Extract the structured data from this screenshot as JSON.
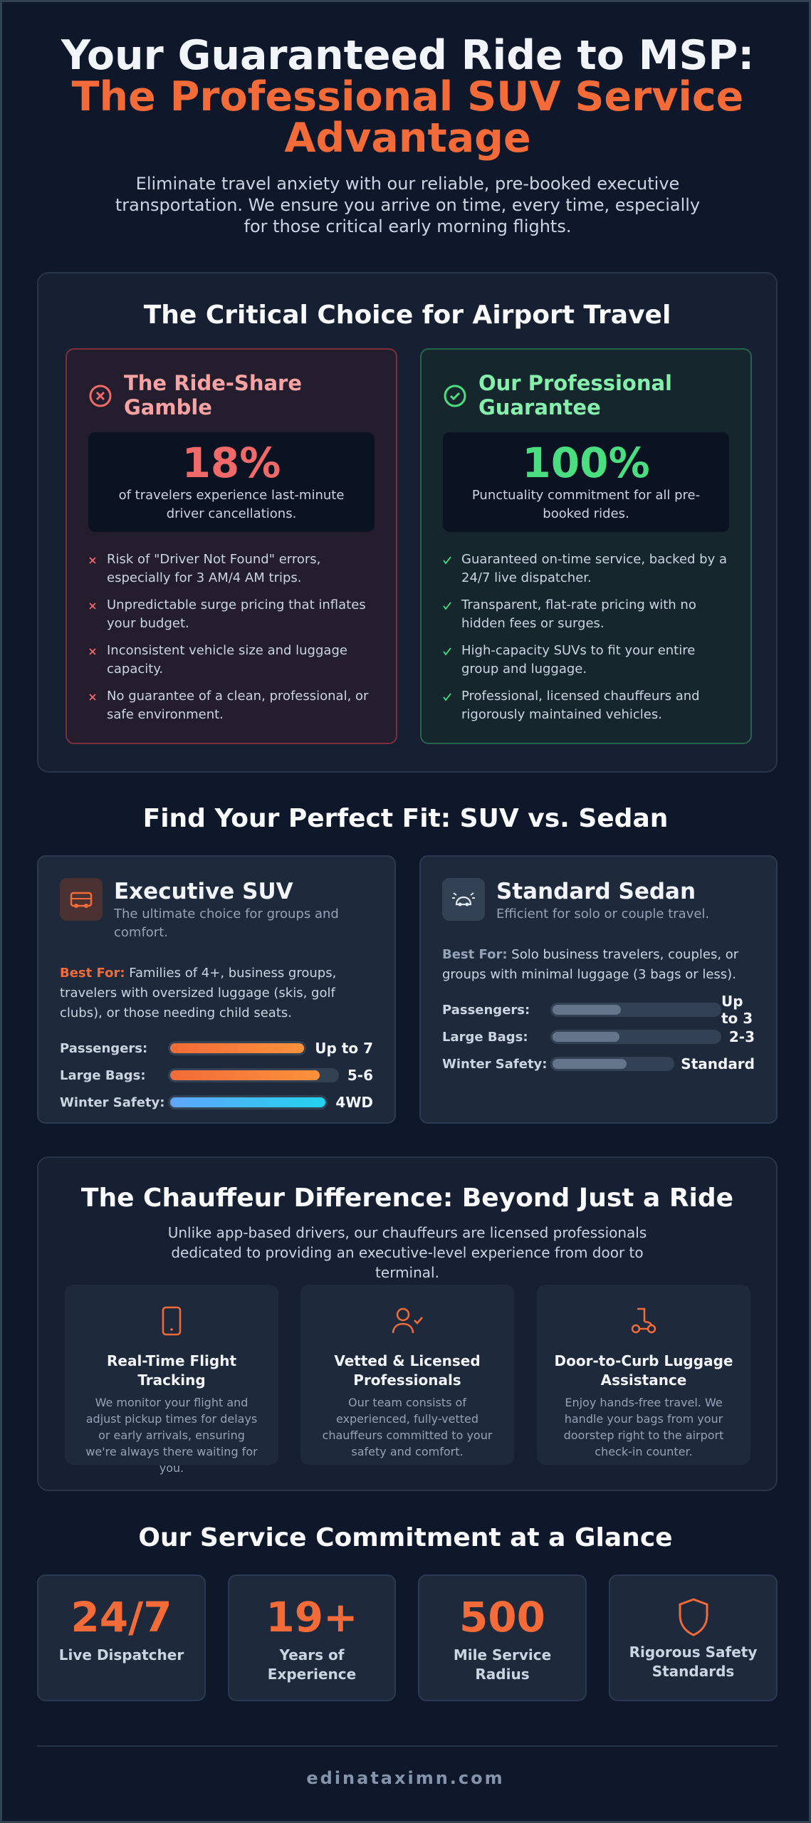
{
  "header": {
    "title_line1": "Your Guaranteed Ride to MSP:",
    "title_line2": "The Professional SUV Service Advantage",
    "subtitle": "Eliminate travel anxiety with our reliable, pre-booked executive transportation. We ensure you arrive on time, every time, especially for those critical early morning flights."
  },
  "comparison": {
    "title": "The Critical Choice for Airport Travel",
    "rideshare": {
      "title": "The Ride-Share Gamble",
      "stat": "18%",
      "stat_caption": "of travelers experience last-minute driver cancellations.",
      "points": [
        "Risk of \"Driver Not Found\" errors, especially for 3 AM/4 AM trips.",
        "Unpredictable surge pricing that inflates your budget.",
        "Inconsistent vehicle size and luggage capacity.",
        "No guarantee of a clean, professional, or safe environment."
      ]
    },
    "professional": {
      "title": "Our Professional Guarantee",
      "stat": "100%",
      "stat_caption": "Punctuality commitment for all pre-booked rides.",
      "points": [
        "Guaranteed on-time service, backed by a 24/7 live dispatcher.",
        "Transparent, flat-rate pricing with no hidden fees or surges.",
        "High-capacity SUVs to fit your entire group and luggage.",
        "Professional, licensed chauffeurs and rigorously maintained vehicles."
      ]
    }
  },
  "fit": {
    "title": "Find Your Perfect Fit: SUV vs. Sedan",
    "vehicles": [
      {
        "name": "Executive SUV",
        "tagline": "The ultimate choice for groups and comfort.",
        "best_for_label": "Best For:",
        "best_for": "Families of 4+, business groups, travelers with oversized luggage (skis, golf clubs), or those needing child seats.",
        "specs": [
          {
            "label": "Passengers:",
            "value": "Up to 7"
          },
          {
            "label": "Large Bags:",
            "value": "5-6"
          },
          {
            "label": "Winter Safety:",
            "value": "4WD"
          }
        ]
      },
      {
        "name": "Standard Sedan",
        "tagline": "Efficient for solo or couple travel.",
        "best_for_label": "Best For:",
        "best_for": "Solo business travelers, couples, or groups with minimal luggage (3 bags or less).",
        "specs": [
          {
            "label": "Passengers:",
            "value": "Up to 3"
          },
          {
            "label": "Large Bags:",
            "value": "2-3"
          },
          {
            "label": "Winter Safety:",
            "value": "Standard"
          }
        ]
      }
    ]
  },
  "chauffeur": {
    "title": "The Chauffeur Difference: Beyond Just a Ride",
    "subtitle": "Unlike app-based drivers, our chauffeurs are licensed professionals dedicated to providing an executive-level experience from door to terminal.",
    "features": [
      {
        "title": "Real-Time Flight Tracking",
        "text": "We monitor your flight and adjust pickup times for delays or early arrivals, ensuring we're always there waiting for you."
      },
      {
        "title": "Vetted & Licensed Professionals",
        "text": "Our team consists of experienced, fully-vetted chauffeurs committed to your safety and comfort."
      },
      {
        "title": "Door-to-Curb Luggage Assistance",
        "text": "Enjoy hands-free travel. We handle your bags from your doorstep right to the airport check-in counter."
      }
    ]
  },
  "commitment": {
    "title": "Our Service Commitment at a Glance",
    "stats": [
      {
        "value": "24/7",
        "label": "Live Dispatcher"
      },
      {
        "value": "19+",
        "label": "Years of Experience"
      },
      {
        "value": "500",
        "label": "Mile Service Radius"
      },
      {
        "label": "Rigorous Safety Standards"
      }
    ]
  },
  "footer": {
    "site": "edinataximn.com"
  }
}
